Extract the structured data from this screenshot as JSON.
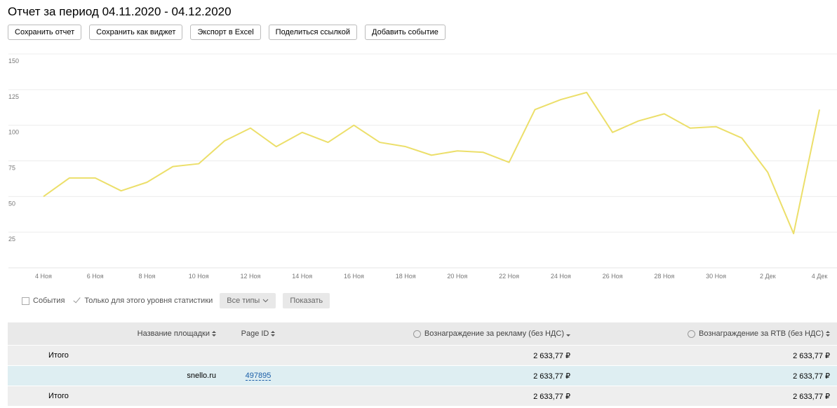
{
  "header": {
    "title": "Отчет за период 04.11.2020 - 04.12.2020",
    "buttons": [
      "Сохранить отчет",
      "Сохранить как виджет",
      "Экспорт в Excel",
      "Поделиться ссылкой",
      "Добавить событие"
    ]
  },
  "chart_data": {
    "type": "line",
    "categories": [
      "4 Ноя",
      null,
      "6 Ноя",
      null,
      "8 Ноя",
      null,
      "10 Ноя",
      null,
      "12 Ноя",
      null,
      "14 Ноя",
      null,
      "16 Ноя",
      null,
      "18 Ноя",
      null,
      "20 Ноя",
      null,
      "22 Ноя",
      null,
      "24 Ноя",
      null,
      "26 Ноя",
      null,
      "28 Ноя",
      null,
      "30 Ноя",
      null,
      "2 Дек",
      null,
      "4 Дек"
    ],
    "values": [
      50,
      63,
      63,
      54,
      60,
      71,
      73,
      89,
      98,
      85,
      95,
      88,
      100,
      88,
      85,
      79,
      82,
      81,
      74,
      111,
      118,
      123,
      95,
      103,
      108,
      98,
      99,
      91,
      67,
      24,
      111
    ],
    "color": "#ecdf6a",
    "ylim": [
      0,
      150
    ],
    "yticks": [
      25,
      50,
      75,
      100,
      125,
      150
    ],
    "grid": true
  },
  "filters": {
    "events": "События",
    "level_only": "Только для этого уровня статистики",
    "types": "Все типы",
    "show": "Показать"
  },
  "table": {
    "columns": [
      "Название площадки",
      "Page ID",
      "Вознаграждение за рекламу (без НДС)",
      "Вознаграждение за RTB (без НДС)"
    ],
    "rows": [
      {
        "name": "Итого",
        "reward_ads": "2 633,77 ₽",
        "reward_rtb": "2 633,77 ₽"
      },
      {
        "name": "snello.ru",
        "page_id": "497895",
        "reward_ads": "2 633,77 ₽",
        "reward_rtb": "2 633,77 ₽"
      },
      {
        "name": "Итого",
        "reward_ads": "2 633,77 ₽",
        "reward_rtb": "2 633,77 ₽"
      }
    ]
  }
}
